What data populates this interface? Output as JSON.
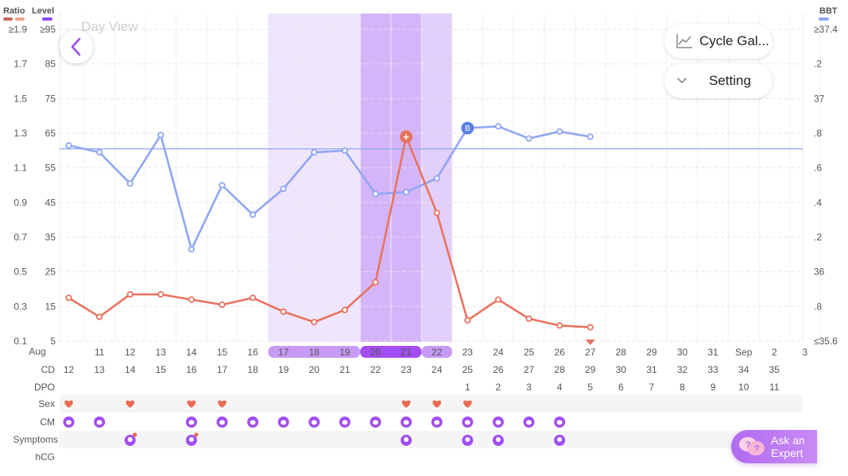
{
  "header": {
    "ratio_label": "Ratio",
    "level_label": "Level",
    "bbt_label": "BBT",
    "title": "Day View",
    "colors": {
      "ratio": "#e8735f",
      "level": "#8a4af0",
      "bbt": "#8fa6f2"
    }
  },
  "buttons": {
    "back_icon": "chevron-left-icon",
    "cycle_gallery": "Cycle Gal...",
    "cycle_gallery_icon": "line-chart-icon",
    "setting": "Setting",
    "setting_icon": "chevron-down-icon",
    "ask_expert": "Ask an\nExpert",
    "ask_expert_icon": "chat-bubbles-icon"
  },
  "chart_data": {
    "type": "line",
    "ratio_axis": {
      "labels": [
        "≥1.9",
        "1.7",
        "1.5",
        "1.3",
        "1.1",
        "0.9",
        "0.7",
        "0.5",
        "0.3",
        "0.1"
      ],
      "ylim": [
        0.1,
        1.9
      ]
    },
    "level_axis": {
      "labels": [
        "≥95",
        "85",
        "75",
        "65",
        "55",
        "45",
        "35",
        "25",
        "15",
        "5"
      ]
    },
    "bbt_axis": {
      "labels": [
        "≥37.4",
        ".2",
        "37",
        ".8",
        ".6",
        ".4",
        ".2",
        "36",
        ".8",
        "≤35.6"
      ],
      "ylim": [
        35.6,
        37.4
      ]
    },
    "month_label": "Aug",
    "x_dates": [
      "11",
      "12",
      "13",
      "14",
      "15",
      "16",
      "17",
      "18",
      "19",
      "20",
      "21",
      "22",
      "23",
      "24",
      "25",
      "26",
      "27",
      "28",
      "29",
      "30",
      "31",
      "Sep",
      "2",
      "3"
    ],
    "cd": [
      "12",
      "13",
      "14",
      "15",
      "16",
      "17",
      "18",
      "19",
      "20",
      "21",
      "22",
      "23",
      "24",
      "25",
      "26",
      "27",
      "28",
      "29",
      "30",
      "31",
      "32",
      "33",
      "34",
      "35"
    ],
    "dpo": [
      "",
      "",
      "",
      "",
      "",
      "",
      "",
      "",
      "",
      "",
      "",
      "",
      "",
      "1",
      "2",
      "3",
      "4",
      "5",
      "6",
      "7",
      "8",
      "9",
      "10",
      "11"
    ],
    "highlight_light_dates": [
      "17",
      "18",
      "19"
    ],
    "highlight_dark_dates": [
      "20",
      "21"
    ],
    "highlight_mid_dates": [
      "22"
    ],
    "today_date": "27",
    "coverline_bbt": 36.71,
    "series": [
      {
        "name": "BBT",
        "color": "#8fa6f2",
        "x": [
          10,
          11,
          12,
          13,
          14,
          15,
          16,
          17,
          18,
          19,
          20,
          21,
          22,
          23,
          24,
          25,
          26,
          27
        ],
        "values": [
          36.73,
          36.69,
          36.51,
          36.79,
          36.13,
          36.5,
          36.33,
          36.48,
          36.69,
          36.7,
          36.45,
          36.46,
          36.54,
          36.83,
          36.84,
          36.77,
          36.81,
          36.78
        ]
      },
      {
        "name": "Ratio",
        "color": "#e8735f",
        "x": [
          10,
          11,
          12,
          13,
          14,
          15,
          16,
          17,
          18,
          19,
          20,
          21,
          22,
          23,
          24,
          25,
          26,
          27
        ],
        "values": [
          0.35,
          0.24,
          0.37,
          0.37,
          0.34,
          0.31,
          0.35,
          0.27,
          0.21,
          0.28,
          0.44,
          1.28,
          0.84,
          0.22,
          0.34,
          0.23,
          0.19,
          0.18
        ]
      }
    ],
    "markers": {
      "peak_date": "21",
      "peak_symbol": "+",
      "bbt_marker_date": "23",
      "bbt_marker_symbol": "B"
    }
  },
  "rows": {
    "labels": {
      "aug": "Aug",
      "cd": "CD",
      "dpo": "DPO",
      "sex": "Sex",
      "cm": "CM",
      "symptoms": "Symptoms",
      "hcg": "hCG"
    },
    "sex_dates": [
      "10",
      "12",
      "14",
      "15",
      "21",
      "22",
      "23"
    ],
    "cm_dates": [
      "10",
      "11",
      "14",
      "15",
      "16",
      "17",
      "18",
      "19",
      "20",
      "21",
      "22",
      "23",
      "24",
      "25",
      "26"
    ],
    "symptom_dates": [
      "12",
      "14",
      "21",
      "23",
      "24",
      "26"
    ],
    "symptom_badge_dates": [
      "12",
      "14"
    ]
  }
}
